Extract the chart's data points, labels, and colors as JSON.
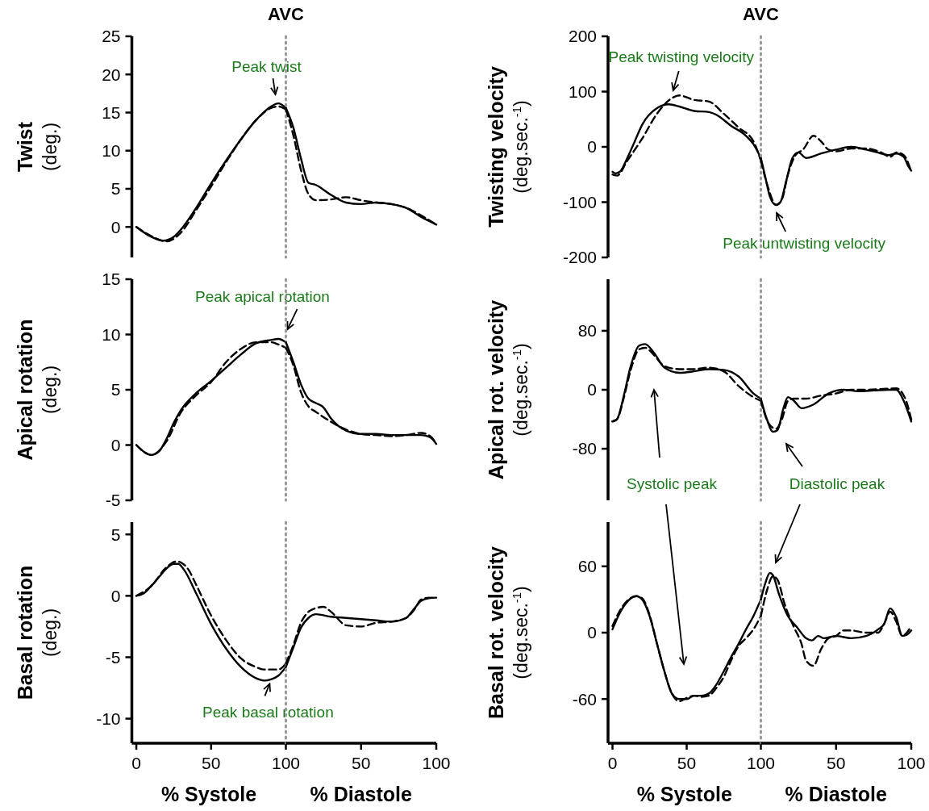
{
  "chart_data": [
    {
      "type": "line",
      "ylabel": "Twist\n(deg.)",
      "xlim": [
        -3,
        100
      ],
      "ylim": [
        -4,
        25
      ],
      "yticks": [
        0,
        5,
        10,
        15,
        20,
        25
      ],
      "tick_labels": "y",
      "annotations": [
        {
          "text": "Peak twist",
          "x": 93,
          "y": 16
        }
      ],
      "series": [
        {
          "color": "#000000",
          "line_style": "solid",
          "x": [
            0,
            10,
            18,
            25,
            30,
            40,
            50,
            60,
            70,
            80,
            90,
            95,
            100
          ],
          "values": [
            0,
            -1.3,
            -1.8,
            -1.3,
            -0.3,
            2.5,
            5.7,
            8.7,
            11.5,
            14,
            15.8,
            16.2,
            15.6
          ]
        },
        {
          "color": "#000000",
          "line_style": "dashed",
          "x": [
            0,
            10,
            20,
            30,
            40,
            50,
            60,
            70,
            80,
            90,
            95,
            100
          ],
          "values": [
            0,
            -1.2,
            -1.9,
            -0.7,
            2.2,
            5.3,
            8.5,
            11.5,
            14,
            15.6,
            15.8,
            15.4
          ]
        }
      ]
    },
    {
      "type": "line",
      "xlim": [
        0,
        100
      ],
      "ylim": [
        -4,
        25
      ],
      "tick_labels": false,
      "ref_lines": [
        {
          "axis": "x",
          "value": 0,
          "label": "AVC",
          "color": "#999999",
          "line_style": "dotted"
        }
      ],
      "series": [
        {
          "color": "#000000",
          "line_style": "solid",
          "x": [
            0,
            5,
            10,
            15,
            20,
            30,
            40,
            50,
            60,
            70,
            80,
            90,
            98,
            100
          ],
          "values": [
            15.6,
            13,
            9,
            5.8,
            5.5,
            4.2,
            3.2,
            3,
            3.2,
            3,
            2.5,
            1.3,
            0.5,
            0.3
          ]
        },
        {
          "color": "#000000",
          "line_style": "dashed",
          "x": [
            0,
            5,
            10,
            15,
            20,
            30,
            40,
            50,
            60,
            70,
            80,
            90,
            100
          ],
          "values": [
            15.4,
            12,
            7.5,
            4.3,
            3.5,
            3.6,
            3.9,
            3.5,
            3.2,
            3,
            2.5,
            1.5,
            0.3
          ]
        }
      ]
    },
    {
      "type": "line",
      "ylabel": "Twisting velocity\n(deg.sec.$^{-1}$)",
      "xlim": [
        -3,
        100
      ],
      "ylim": [
        -200,
        200
      ],
      "yticks": [
        -200,
        -100,
        0,
        100,
        200
      ],
      "tick_labels": "y",
      "annotations": [
        {
          "text": "Peak twisting velocity",
          "x": 42,
          "y": 92
        }
      ],
      "series": [
        {
          "color": "#000000",
          "line_style": "solid",
          "x": [
            0,
            2,
            5,
            10,
            15,
            20,
            30,
            38,
            45,
            55,
            65,
            70,
            80,
            90,
            95,
            100
          ],
          "values": [
            -45,
            -48,
            -45,
            -20,
            10,
            40,
            70,
            77,
            73,
            65,
            63,
            58,
            38,
            20,
            5,
            -20
          ]
        },
        {
          "color": "#000000",
          "line_style": "dashed",
          "x": [
            0,
            3,
            10,
            20,
            30,
            40,
            45,
            55,
            65,
            75,
            85,
            95,
            100
          ],
          "values": [
            -50,
            -52,
            -25,
            15,
            60,
            88,
            93,
            85,
            82,
            60,
            35,
            10,
            -25
          ]
        }
      ]
    },
    {
      "type": "line",
      "xlim": [
        0,
        100
      ],
      "ylim": [
        -200,
        200
      ],
      "tick_labels": false,
      "ref_lines": [
        {
          "axis": "x",
          "value": 0,
          "label": "AVC",
          "color": "#999999",
          "line_style": "dotted"
        }
      ],
      "annotations": [
        {
          "text": "Peak untwisting velocity",
          "x": 10,
          "y": -105
        }
      ],
      "series": [
        {
          "color": "#000000",
          "line_style": "solid",
          "x": [
            0,
            3,
            6,
            10,
            13,
            17,
            21,
            25,
            30,
            40,
            50,
            60,
            70,
            80,
            85,
            90,
            95,
            98,
            100
          ],
          "values": [
            -20,
            -55,
            -90,
            -105,
            -100,
            -60,
            -20,
            -10,
            -20,
            -12,
            -5,
            0,
            -5,
            -12,
            -15,
            -12,
            -18,
            -35,
            -43
          ]
        },
        {
          "color": "#000000",
          "line_style": "dashed",
          "x": [
            0,
            5,
            10,
            14,
            18,
            23,
            28,
            35,
            40,
            45,
            50,
            60,
            70,
            80,
            86,
            90,
            95,
            100
          ],
          "values": [
            -25,
            -75,
            -105,
            -95,
            -50,
            -15,
            -5,
            20,
            10,
            -5,
            -8,
            -3,
            -3,
            -10,
            -18,
            -10,
            -15,
            -45
          ]
        }
      ]
    },
    {
      "type": "line",
      "ylabel": "Apical rotation\n(deg.)",
      "xlim": [
        -3,
        100
      ],
      "ylim": [
        -5,
        15
      ],
      "yticks": [
        -5,
        0,
        5,
        10,
        15
      ],
      "tick_labels": "y",
      "annotations": [
        {
          "text": "Peak apical rotation",
          "x": 100,
          "y": 9.3
        }
      ],
      "series": [
        {
          "color": "#000000",
          "line_style": "solid",
          "x": [
            0,
            5,
            10,
            15,
            20,
            25,
            30,
            40,
            50,
            60,
            70,
            80,
            90,
            95,
            100
          ],
          "values": [
            0,
            -0.6,
            -0.9,
            -0.6,
            0.5,
            2,
            3.2,
            4.7,
            5.8,
            7,
            8.2,
            9.2,
            9.5,
            9.6,
            9.3
          ]
        },
        {
          "color": "#000000",
          "line_style": "dashed",
          "x": [
            0,
            10,
            20,
            30,
            40,
            50,
            60,
            70,
            80,
            90,
            95,
            100
          ],
          "values": [
            0,
            -0.9,
            0.3,
            3,
            4.5,
            5.7,
            7.5,
            8.7,
            9.3,
            9.3,
            9.1,
            8.8
          ]
        }
      ]
    },
    {
      "type": "line",
      "xlim": [
        0,
        100
      ],
      "ylim": [
        -5,
        15
      ],
      "tick_labels": false,
      "ref_lines": [
        {
          "axis": "x",
          "value": 0,
          "color": "#999999",
          "line_style": "dotted"
        }
      ],
      "series": [
        {
          "color": "#000000",
          "line_style": "solid",
          "x": [
            0,
            5,
            10,
            15,
            20,
            25,
            30,
            40,
            50,
            60,
            70,
            80,
            90,
            96,
            100
          ],
          "values": [
            9.3,
            7.5,
            5.5,
            4.2,
            3.8,
            3.4,
            2.4,
            1.3,
            1,
            1,
            0.9,
            0.9,
            0.9,
            0.7,
            0.1
          ]
        },
        {
          "color": "#000000",
          "line_style": "dashed",
          "x": [
            0,
            5,
            10,
            15,
            20,
            30,
            40,
            50,
            60,
            70,
            80,
            90,
            96,
            100
          ],
          "values": [
            8.8,
            7.2,
            4.8,
            3.5,
            3,
            2.1,
            1.4,
            1,
            0.9,
            0.8,
            0.9,
            1.1,
            0.8,
            0.1
          ]
        }
      ]
    },
    {
      "type": "line",
      "ylabel": "Apical rot. velocity\n(deg.sec.$^{-1}$)",
      "xlim": [
        -3,
        100
      ],
      "ylim": [
        -150,
        150
      ],
      "yticks": [
        -80,
        0,
        80
      ],
      "tick_labels": "y",
      "annotations": [
        "Systolic peak"
      ],
      "series": [
        {
          "color": "#000000",
          "line_style": "solid",
          "x": [
            0,
            3,
            8,
            12,
            18,
            22,
            28,
            35,
            45,
            55,
            65,
            75,
            85,
            95,
            100
          ],
          "values": [
            -43,
            -40,
            -5,
            30,
            60,
            62,
            50,
            30,
            23,
            25,
            28,
            27,
            18,
            -5,
            -12
          ]
        },
        {
          "color": "#000000",
          "line_style": "dashed",
          "x": [
            0,
            3,
            8,
            12,
            18,
            22,
            28,
            35,
            45,
            55,
            65,
            75,
            85,
            95,
            100
          ],
          "values": [
            -43,
            -40,
            -8,
            25,
            55,
            57,
            47,
            32,
            28,
            28,
            30,
            25,
            5,
            -10,
            -15
          ]
        }
      ]
    },
    {
      "type": "line",
      "xlim": [
        0,
        100
      ],
      "ylim": [
        -150,
        150
      ],
      "tick_labels": false,
      "ref_lines": [
        {
          "axis": "x",
          "value": 0,
          "color": "#999999",
          "line_style": "dotted"
        }
      ],
      "annotations": [
        "Diastolic peak"
      ],
      "series": [
        {
          "color": "#000000",
          "line_style": "solid",
          "x": [
            0,
            4,
            8,
            11,
            15,
            18,
            22,
            27,
            35,
            45,
            55,
            65,
            75,
            85,
            90,
            95,
            100
          ],
          "values": [
            -12,
            -40,
            -57,
            -55,
            -25,
            -10,
            -15,
            -25,
            -20,
            -5,
            0,
            -2,
            -1,
            0,
            0,
            -15,
            -43
          ]
        },
        {
          "color": "#000000",
          "line_style": "dashed",
          "x": [
            0,
            5,
            10,
            14,
            18,
            22,
            30,
            40,
            50,
            60,
            70,
            80,
            90,
            96,
            100
          ],
          "values": [
            -15,
            -45,
            -53,
            -40,
            -15,
            -12,
            -12,
            -8,
            -5,
            0,
            0,
            1,
            2,
            -12,
            -40
          ]
        }
      ]
    },
    {
      "type": "line",
      "ylabel": "Basal rotation\n(deg.)",
      "xlabel": "% Systole",
      "xlim": [
        -3,
        100
      ],
      "xticks": [
        0,
        50,
        100
      ],
      "ylim": [
        -12,
        6
      ],
      "yticks": [
        -10,
        -5,
        0,
        5
      ],
      "annotations": [
        {
          "text": "Peak basal rotation",
          "x": 87,
          "y": -6.9
        }
      ],
      "series": [
        {
          "color": "#000000",
          "line_style": "solid",
          "x": [
            0,
            5,
            10,
            15,
            20,
            25,
            28,
            32,
            40,
            50,
            60,
            70,
            80,
            86,
            90,
            95,
            100
          ],
          "values": [
            0,
            0.2,
            0.8,
            1.5,
            2.2,
            2.6,
            2.6,
            2.1,
            0.2,
            -2.3,
            -4.3,
            -5.8,
            -6.7,
            -6.9,
            -6.8,
            -6.5,
            -5.8
          ]
        },
        {
          "color": "#000000",
          "line_style": "dashed",
          "x": [
            0,
            10,
            20,
            27,
            30,
            35,
            40,
            50,
            60,
            70,
            80,
            85,
            90,
            95,
            100
          ],
          "values": [
            0,
            0.8,
            2.3,
            2.8,
            2.7,
            2.1,
            0.9,
            -1.6,
            -3.6,
            -5.1,
            -5.8,
            -6,
            -6,
            -6,
            -5.5
          ]
        }
      ]
    },
    {
      "type": "line",
      "xlabel": "% Diastole",
      "xlim": [
        0,
        100
      ],
      "xticks": [
        50,
        100
      ],
      "ylim": [
        -12,
        6
      ],
      "tick_labels": "x",
      "ref_lines": [
        {
          "axis": "x",
          "value": 0,
          "color": "#999999",
          "line_style": "dotted"
        }
      ],
      "series": [
        {
          "color": "#000000",
          "line_style": "solid",
          "x": [
            0,
            5,
            10,
            15,
            20,
            30,
            40,
            50,
            60,
            70,
            80,
            85,
            90,
            95,
            100
          ],
          "values": [
            -5.8,
            -4.2,
            -2.6,
            -1.8,
            -1.5,
            -1.7,
            -1.8,
            -1.9,
            -2,
            -2.1,
            -1.8,
            -1.1,
            -0.4,
            -0.2,
            -0.15
          ]
        },
        {
          "color": "#000000",
          "line_style": "dashed",
          "x": [
            0,
            5,
            10,
            15,
            20,
            25,
            30,
            40,
            50,
            60,
            70,
            80,
            85,
            90,
            95,
            100
          ],
          "values": [
            -5.5,
            -4,
            -2.2,
            -1.3,
            -1,
            -0.9,
            -1.3,
            -2.4,
            -2.5,
            -2.2,
            -2.1,
            -1.8,
            -1.2,
            -0.3,
            -0.15,
            -0.2
          ]
        }
      ]
    },
    {
      "type": "line",
      "ylabel": "Basal rot. velocity\n(deg.sec.$^{-1}$)",
      "xlabel": "% Systole",
      "xlim": [
        -3,
        100
      ],
      "xticks": [
        0,
        50,
        100
      ],
      "ylim": [
        -100,
        100
      ],
      "yticks": [
        -60,
        0,
        60
      ],
      "series": [
        {
          "color": "#000000",
          "line_style": "solid",
          "x": [
            0,
            5,
            10,
            16,
            20,
            25,
            30,
            35,
            40,
            45,
            50,
            55,
            60,
            65,
            70,
            75,
            80,
            85,
            90,
            95,
            100
          ],
          "values": [
            3,
            18,
            28,
            33,
            30,
            15,
            -10,
            -35,
            -55,
            -60,
            -60,
            -57,
            -57,
            -55,
            -47,
            -35,
            -22,
            -10,
            3,
            15,
            30
          ]
        },
        {
          "color": "#000000",
          "line_style": "dashed",
          "x": [
            0,
            5,
            10,
            16,
            20,
            25,
            30,
            35,
            40,
            45,
            50,
            55,
            60,
            65,
            70,
            75,
            80,
            85,
            90,
            95,
            100
          ],
          "values": [
            6,
            20,
            29,
            33,
            31,
            16,
            -10,
            -35,
            -55,
            -62,
            -59,
            -57,
            -58,
            -57,
            -50,
            -40,
            -25,
            -12,
            -5,
            3,
            15
          ]
        }
      ]
    },
    {
      "type": "line",
      "xlabel": "% Diastole",
      "xlim": [
        0,
        100
      ],
      "xticks": [
        50,
        100
      ],
      "ylim": [
        -100,
        100
      ],
      "tick_labels": "x",
      "ref_lines": [
        {
          "axis": "x",
          "value": 0,
          "color": "#999999",
          "line_style": "dotted"
        }
      ],
      "series": [
        {
          "color": "#000000",
          "line_style": "solid",
          "x": [
            0,
            3,
            6,
            8,
            12,
            18,
            24,
            30,
            34,
            38,
            42,
            50,
            60,
            70,
            78,
            82,
            86,
            90,
            94,
            97,
            100
          ],
          "values": [
            30,
            45,
            54,
            52,
            35,
            15,
            5,
            -5,
            -7,
            -3,
            -5,
            -3,
            -5,
            -3,
            3,
            8,
            22,
            14,
            -3,
            -2,
            2
          ]
        },
        {
          "color": "#000000",
          "line_style": "dashed",
          "x": [
            0,
            4,
            8,
            11,
            16,
            22,
            27,
            30,
            35,
            40,
            45,
            50,
            55,
            60,
            70,
            78,
            82,
            86,
            90,
            94,
            97,
            100
          ],
          "values": [
            15,
            38,
            51,
            48,
            25,
            5,
            -10,
            -25,
            -30,
            -15,
            -5,
            -3,
            2,
            2,
            0,
            0,
            8,
            19,
            10,
            -3,
            0,
            6
          ]
        }
      ]
    }
  ]
}
